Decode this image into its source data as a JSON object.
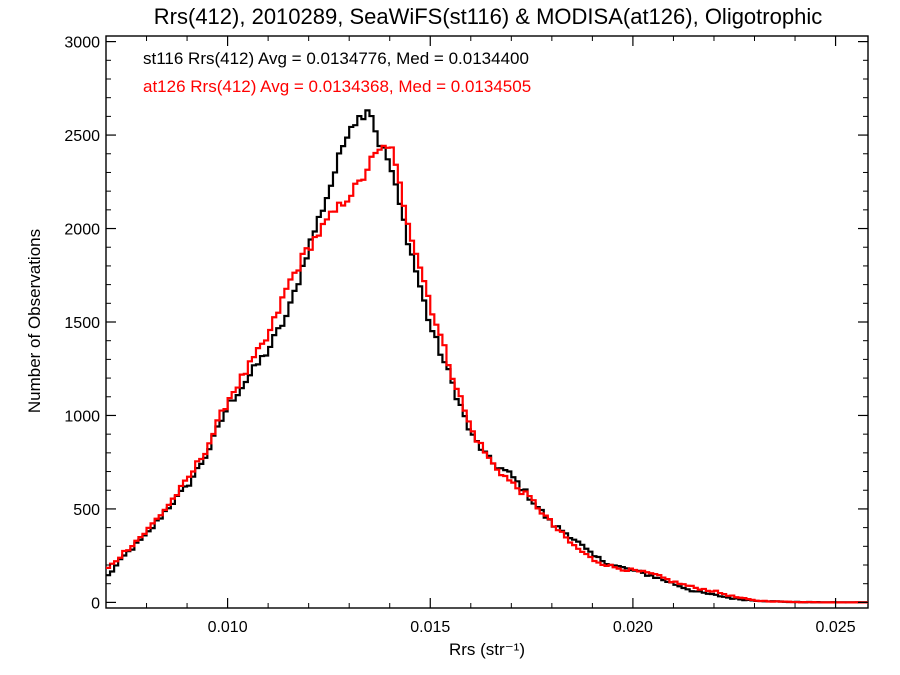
{
  "chart_data": {
    "type": "line",
    "title": "Rrs(412), 2010289, SeaWiFS(st116) & MODISA(at126), Oligotrophic",
    "xlabel": "Rrs (str⁻¹)",
    "ylabel": "Number of Observations",
    "xlim": [
      0.007,
      0.0258
    ],
    "ylim": [
      -30,
      3030
    ],
    "xticks": [
      0.01,
      0.015,
      0.02,
      0.025
    ],
    "xtick_labels": [
      "0.010",
      "0.015",
      "0.020",
      "0.025"
    ],
    "yticks": [
      0,
      500,
      1000,
      1500,
      2000,
      2500,
      3000
    ],
    "ytick_labels": [
      "0",
      "500",
      "1000",
      "1500",
      "2000",
      "2500",
      "3000"
    ],
    "grid": false,
    "legend": [
      {
        "text": "st116 Rrs(412) Avg = 0.0134776, Med = 0.0134400",
        "color": "#000000"
      },
      {
        "text": "at126 Rrs(412) Avg = 0.0134368, Med = 0.0134505",
        "color": "#ff0000"
      }
    ],
    "series": [
      {
        "color": "#000000",
        "style": "step",
        "x": [
          0.007,
          0.0075,
          0.008,
          0.0085,
          0.009,
          0.0095,
          0.01,
          0.0105,
          0.011,
          0.0115,
          0.012,
          0.0125,
          0.013,
          0.0133,
          0.0135,
          0.0137,
          0.014,
          0.0145,
          0.015,
          0.0155,
          0.016,
          0.0165,
          0.017,
          0.0175,
          0.018,
          0.0185,
          0.019,
          0.0195,
          0.02,
          0.0205,
          0.021,
          0.0215,
          0.022,
          0.0225,
          0.023,
          0.0235,
          0.024,
          0.025,
          0.0258
        ],
        "y": [
          130,
          260,
          360,
          500,
          620,
          800,
          1050,
          1200,
          1350,
          1550,
          1900,
          2200,
          2550,
          2600,
          2660,
          2480,
          2350,
          1900,
          1480,
          1200,
          900,
          750,
          680,
          550,
          420,
          350,
          250,
          200,
          170,
          140,
          100,
          60,
          40,
          20,
          10,
          5,
          2,
          0,
          0
        ]
      },
      {
        "color": "#ff0000",
        "style": "step",
        "x": [
          0.007,
          0.0075,
          0.008,
          0.0085,
          0.009,
          0.0095,
          0.01,
          0.0105,
          0.011,
          0.0115,
          0.012,
          0.0125,
          0.013,
          0.0133,
          0.0135,
          0.0137,
          0.014,
          0.0145,
          0.015,
          0.0155,
          0.016,
          0.0165,
          0.017,
          0.0175,
          0.018,
          0.0185,
          0.019,
          0.0195,
          0.02,
          0.0205,
          0.021,
          0.0215,
          0.022,
          0.0225,
          0.023,
          0.0235,
          0.024,
          0.025,
          0.0258
        ],
        "y": [
          170,
          280,
          380,
          510,
          650,
          830,
          1080,
          1250,
          1420,
          1700,
          1900,
          2050,
          2180,
          2250,
          2350,
          2400,
          2460,
          2000,
          1600,
          1250,
          930,
          750,
          640,
          550,
          420,
          310,
          230,
          190,
          170,
          150,
          110,
          80,
          60,
          30,
          10,
          5,
          2,
          0,
          0
        ]
      }
    ]
  }
}
